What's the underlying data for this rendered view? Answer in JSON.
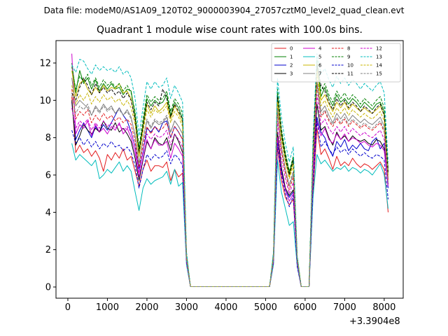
{
  "figure": {
    "suptitle": "Data file: modeM0/AS1A09_120T02_9000003904_27057cztM0_level2_quad_clean.evt",
    "x_offset_label": "+3.3904e8"
  },
  "chart_data": {
    "type": "line",
    "title": "Quadrant 1 module wise count rates with 100.0s bins.",
    "xlabel": "",
    "ylabel": "",
    "xlim": [
      -300,
      8480
    ],
    "ylim": [
      -0.6,
      13.2
    ],
    "xticks": [
      0,
      1000,
      2000,
      3000,
      4000,
      5000,
      6000,
      7000,
      8000
    ],
    "yticks": [
      0,
      2,
      4,
      6,
      8,
      10,
      12
    ],
    "legend_position": "top-right",
    "x": [
      100,
      200,
      300,
      400,
      500,
      600,
      700,
      800,
      900,
      1000,
      1100,
      1200,
      1300,
      1400,
      1500,
      1600,
      1700,
      1800,
      1900,
      2000,
      2100,
      2200,
      2300,
      2400,
      2500,
      2600,
      2700,
      2800,
      2900,
      3000,
      3100,
      5100,
      5200,
      5300,
      5400,
      5500,
      5600,
      5700,
      5800,
      5900,
      6000,
      6100,
      6200,
      6300,
      6400,
      6500,
      6600,
      6700,
      6800,
      6900,
      7000,
      7100,
      7200,
      7300,
      7400,
      7500,
      7600,
      7700,
      7800,
      7900,
      8000,
      8100
    ],
    "series": [
      {
        "name": "0",
        "color": "#e31a1c",
        "dash": "solid",
        "values": [
          10.2,
          7.2,
          7.6,
          7.2,
          7.4,
          7.0,
          7.3,
          6.9,
          6.2,
          7.1,
          6.8,
          7.2,
          6.9,
          7.4,
          6.8,
          7.0,
          6.2,
          5.4,
          6.3,
          6.8,
          6.2,
          6.5,
          6.5,
          6.4,
          6.7,
          5.7,
          6.3,
          5.9,
          6.1,
          1.5,
          0.02,
          0.02,
          1.3,
          7.5,
          5.7,
          4.8,
          4.4,
          4.7,
          1.2,
          0.02,
          0.02,
          0.02,
          5.0,
          8.5,
          7.1,
          7.4,
          6.9,
          6.3,
          7.0,
          6.5,
          6.7,
          6.5,
          6.9,
          6.6,
          6.4,
          6.6,
          6.5,
          6.3,
          6.5,
          6.7,
          6.3,
          4.0
        ]
      },
      {
        "name": "1",
        "color": "#008000",
        "dash": "solid",
        "values": [
          12.0,
          10.4,
          11.6,
          10.9,
          11.2,
          10.6,
          11.1,
          10.5,
          10.9,
          10.6,
          10.9,
          10.6,
          10.7,
          10.3,
          10.6,
          10.5,
          9.2,
          7.3,
          8.7,
          10.1,
          9.7,
          10.0,
          9.8,
          9.9,
          10.3,
          9.2,
          9.9,
          9.6,
          9.0,
          1.7,
          0.02,
          0.02,
          1.7,
          10.4,
          8.3,
          7.1,
          6.1,
          6.9,
          1.6,
          0.02,
          0.02,
          0.02,
          7.4,
          12.0,
          10.2,
          10.7,
          10.1,
          9.7,
          10.3,
          9.9,
          10.1,
          9.8,
          10.1,
          9.9,
          9.6,
          9.9,
          9.7,
          9.5,
          9.8,
          9.9,
          9.4,
          6.2
        ]
      },
      {
        "name": "2",
        "color": "#0000cd",
        "dash": "solid",
        "values": [
          9.9,
          7.9,
          8.4,
          8.8,
          8.4,
          8.0,
          8.6,
          8.3,
          8.7,
          8.4,
          8.8,
          9.2,
          9.6,
          9.2,
          8.9,
          8.3,
          7.5,
          6.3,
          7.2,
          8.5,
          8.3,
          8.6,
          8.3,
          8.8,
          8.9,
          8.0,
          8.6,
          8.3,
          7.9,
          1.6,
          0.02,
          0.02,
          1.5,
          8.1,
          6.3,
          5.2,
          4.8,
          5.1,
          1.3,
          0.02,
          0.02,
          0.02,
          5.9,
          9.1,
          8.3,
          8.0,
          7.4,
          7.0,
          7.8,
          7.5,
          7.9,
          7.3,
          7.6,
          7.4,
          7.7,
          7.4,
          7.3,
          7.8,
          8.0,
          7.4,
          7.7,
          5.3
        ]
      },
      {
        "name": "3",
        "color": "#000000",
        "dash": "solid",
        "values": [
          10.0,
          7.6,
          8.1,
          8.7,
          8.4,
          8.2,
          8.5,
          8.3,
          8.9,
          8.5,
          8.4,
          8.8,
          8.3,
          8.5,
          8.2,
          7.8,
          6.9,
          5.7,
          6.8,
          7.8,
          7.4,
          8.0,
          7.7,
          7.6,
          8.0,
          7.3,
          8.2,
          7.8,
          7.2,
          1.4,
          0.02,
          0.02,
          1.4,
          8.3,
          6.4,
          5.3,
          4.9,
          5.2,
          1.3,
          0.02,
          0.02,
          0.02,
          6.1,
          9.8,
          8.4,
          8.6,
          8.0,
          7.6,
          8.3,
          7.9,
          8.1,
          7.8,
          8.1,
          7.9,
          7.8,
          7.9,
          7.7,
          7.6,
          7.9,
          7.8,
          7.4,
          5.5
        ]
      },
      {
        "name": "4",
        "color": "#cc00cc",
        "dash": "solid",
        "values": [
          12.5,
          8.2,
          8.7,
          8.5,
          8.9,
          8.1,
          8.7,
          8.3,
          8.5,
          8.2,
          8.6,
          8.4,
          8.8,
          8.2,
          8.5,
          8.0,
          7.2,
          5.9,
          6.9,
          7.9,
          7.4,
          7.9,
          7.6,
          7.6,
          7.8,
          6.9,
          7.7,
          7.4,
          7.0,
          1.4,
          0.02,
          0.02,
          1.4,
          8.0,
          6.1,
          5.2,
          4.6,
          5.0,
          1.2,
          0.02,
          0.02,
          0.02,
          5.9,
          8.9,
          8.1,
          8.5,
          7.9,
          7.7,
          8.2,
          7.9,
          8.2,
          7.8,
          8.0,
          7.9,
          7.7,
          7.8,
          7.6,
          7.5,
          7.7,
          7.6,
          7.3,
          5.4
        ]
      },
      {
        "name": "5",
        "color": "#00bcbc",
        "dash": "solid",
        "values": [
          7.7,
          6.8,
          7.1,
          6.9,
          6.7,
          6.5,
          6.8,
          5.8,
          6.0,
          6.3,
          6.1,
          6.4,
          6.7,
          6.2,
          6.5,
          6.2,
          5.1,
          4.1,
          5.3,
          5.8,
          5.5,
          5.7,
          5.8,
          5.9,
          6.2,
          5.5,
          6.3,
          5.4,
          5.6,
          1.2,
          0.02,
          0.02,
          1.2,
          6.8,
          5.1,
          4.2,
          3.3,
          3.5,
          1.1,
          0.02,
          0.02,
          0.02,
          4.8,
          7.1,
          6.6,
          6.8,
          6.5,
          6.2,
          6.4,
          6.3,
          6.5,
          6.2,
          6.4,
          6.3,
          6.1,
          6.3,
          6.2,
          6.0,
          6.3,
          6.6,
          6.0,
          4.2
        ]
      },
      {
        "name": "6",
        "color": "#c8b400",
        "dash": "solid",
        "values": [
          11.6,
          10.2,
          10.9,
          11.1,
          10.6,
          10.3,
          10.7,
          10.4,
          10.8,
          10.5,
          10.7,
          10.6,
          10.9,
          10.4,
          10.5,
          10.1,
          8.9,
          7.0,
          8.5,
          9.8,
          9.3,
          9.7,
          9.4,
          9.6,
          9.9,
          9.0,
          9.7,
          9.3,
          8.8,
          1.7,
          0.02,
          0.02,
          1.7,
          10.2,
          8.1,
          6.8,
          5.9,
          6.7,
          1.5,
          0.02,
          0.02,
          0.02,
          7.1,
          11.7,
          10.0,
          10.3,
          9.8,
          9.4,
          9.9,
          9.6,
          9.9,
          9.5,
          9.8,
          9.6,
          9.4,
          9.6,
          9.4,
          9.3,
          9.5,
          9.7,
          9.2,
          6.0
        ]
      },
      {
        "name": "7",
        "color": "#808080",
        "dash": "solid",
        "values": [
          11.2,
          9.7,
          10.0,
          9.8,
          9.6,
          9.2,
          9.7,
          9.4,
          9.8,
          9.5,
          9.7,
          9.3,
          9.6,
          9.2,
          9.5,
          9.1,
          8.1,
          6.6,
          7.9,
          8.9,
          8.5,
          8.9,
          8.7,
          8.8,
          9.1,
          8.3,
          8.9,
          8.6,
          8.2,
          1.6,
          0.02,
          0.02,
          1.6,
          9.6,
          7.5,
          6.3,
          5.4,
          6.1,
          1.4,
          0.02,
          0.02,
          0.02,
          6.7,
          11.1,
          9.4,
          9.7,
          9.2,
          8.8,
          9.3,
          9.0,
          9.3,
          8.9,
          9.2,
          9.0,
          8.8,
          9.0,
          8.8,
          8.7,
          8.9,
          9.1,
          8.6,
          5.8
        ]
      },
      {
        "name": "8",
        "color": "#e31a1c",
        "dash": "dashed",
        "values": [
          10.6,
          9.0,
          9.4,
          9.2,
          9.5,
          8.8,
          9.2,
          8.9,
          9.3,
          9.0,
          9.2,
          8.9,
          9.1,
          8.8,
          9.0,
          8.7,
          7.8,
          6.4,
          7.6,
          8.6,
          8.2,
          8.6,
          8.4,
          8.5,
          8.8,
          8.0,
          8.6,
          8.3,
          7.9,
          1.5,
          0.02,
          0.02,
          1.5,
          9.4,
          7.3,
          6.1,
          5.2,
          5.9,
          1.3,
          0.02,
          0.02,
          0.02,
          6.5,
          10.8,
          9.1,
          9.4,
          8.9,
          8.6,
          9.0,
          8.7,
          9.0,
          8.6,
          8.9,
          8.7,
          8.5,
          8.7,
          8.5,
          8.4,
          8.6,
          8.8,
          8.3,
          5.7
        ]
      },
      {
        "name": "9",
        "color": "#008000",
        "dash": "dashed",
        "values": [
          11.8,
          10.6,
          11.3,
          11.0,
          11.4,
          10.8,
          11.2,
          10.7,
          11.1,
          10.8,
          11.0,
          10.7,
          10.9,
          10.5,
          10.8,
          10.4,
          9.4,
          7.5,
          9.0,
          10.3,
          9.9,
          10.2,
          10.0,
          10.1,
          10.5,
          9.4,
          10.1,
          9.8,
          9.3,
          1.8,
          0.02,
          0.02,
          1.8,
          10.6,
          8.5,
          7.2,
          6.2,
          7.0,
          1.6,
          0.02,
          0.02,
          0.02,
          7.6,
          12.2,
          10.5,
          10.9,
          10.3,
          9.9,
          10.5,
          10.1,
          10.4,
          10.0,
          10.3,
          10.1,
          9.8,
          10.1,
          9.9,
          9.7,
          10.0,
          10.2,
          9.6,
          6.3
        ]
      },
      {
        "name": "10",
        "color": "#0000cd",
        "dash": "dashed",
        "values": [
          8.4,
          7.7,
          8.0,
          7.6,
          7.9,
          7.5,
          7.8,
          7.4,
          7.7,
          7.5,
          7.8,
          7.5,
          7.6,
          7.3,
          7.5,
          7.2,
          6.5,
          5.3,
          6.3,
          7.1,
          6.8,
          7.1,
          6.9,
          7.0,
          7.3,
          6.6,
          7.1,
          6.9,
          6.5,
          1.3,
          0.02,
          0.02,
          1.3,
          7.7,
          6.0,
          5.0,
          4.3,
          4.9,
          1.1,
          0.02,
          0.02,
          0.02,
          5.4,
          8.9,
          7.5,
          7.8,
          7.4,
          7.1,
          7.5,
          7.2,
          7.4,
          7.1,
          7.4,
          7.2,
          7.0,
          7.2,
          7.0,
          6.9,
          7.1,
          7.0,
          6.8,
          4.7
        ]
      },
      {
        "name": "11",
        "color": "#000000",
        "dash": "dashed",
        "values": [
          10.4,
          10.0,
          10.7,
          11.2,
          10.8,
          10.3,
          10.9,
          10.4,
          10.7,
          10.4,
          10.6,
          10.3,
          10.5,
          10.1,
          10.4,
          10.0,
          9.0,
          7.2,
          8.6,
          9.9,
          9.5,
          9.9,
          9.7,
          10.6,
          10.1,
          9.1,
          9.8,
          9.4,
          9.0,
          1.7,
          0.02,
          0.02,
          1.7,
          10.2,
          8.2,
          6.9,
          6.0,
          6.8,
          1.5,
          0.02,
          0.02,
          0.02,
          7.3,
          11.9,
          10.8,
          10.5,
          9.9,
          9.5,
          10.1,
          9.7,
          10.0,
          9.6,
          9.9,
          9.7,
          9.4,
          9.7,
          9.5,
          9.3,
          9.6,
          9.8,
          9.2,
          6.1
        ]
      },
      {
        "name": "12",
        "color": "#cc00cc",
        "dash": "dashed",
        "values": [
          9.6,
          8.5,
          8.9,
          8.7,
          9.0,
          8.4,
          8.8,
          8.5,
          8.9,
          8.6,
          8.8,
          8.5,
          8.7,
          8.4,
          8.6,
          8.3,
          7.5,
          6.1,
          7.3,
          8.2,
          7.9,
          8.2,
          8.0,
          8.1,
          8.4,
          7.6,
          8.2,
          7.9,
          7.5,
          1.4,
          0.02,
          0.02,
          1.4,
          8.9,
          6.9,
          5.8,
          5.0,
          5.6,
          1.3,
          0.02,
          0.02,
          0.02,
          6.2,
          10.3,
          8.7,
          9.0,
          8.5,
          8.2,
          8.6,
          8.3,
          8.6,
          8.2,
          8.5,
          8.3,
          8.1,
          8.3,
          8.1,
          8.0,
          8.2,
          8.4,
          7.9,
          5.5
        ]
      },
      {
        "name": "13",
        "color": "#00bcbc",
        "dash": "dashed",
        "values": [
          11.9,
          11.5,
          12.2,
          12.1,
          11.7,
          11.4,
          11.9,
          11.6,
          11.8,
          11.6,
          11.7,
          11.5,
          11.8,
          11.4,
          11.6,
          11.2,
          10.1,
          8.1,
          9.6,
          11.0,
          10.6,
          11.0,
          10.7,
          10.8,
          11.2,
          10.1,
          10.8,
          10.4,
          9.9,
          1.9,
          0.02,
          0.02,
          1.9,
          11.2,
          9.1,
          7.7,
          6.7,
          7.5,
          1.7,
          0.02,
          0.02,
          0.02,
          8.0,
          12.5,
          11.4,
          11.7,
          11.1,
          10.7,
          11.3,
          10.9,
          11.2,
          10.8,
          11.1,
          10.9,
          10.6,
          10.9,
          10.7,
          10.5,
          10.8,
          11.0,
          10.4,
          6.7
        ]
      },
      {
        "name": "14",
        "color": "#c8b400",
        "dash": "dashed",
        "values": [
          10.8,
          9.8,
          10.3,
          10.0,
          10.4,
          9.8,
          10.2,
          9.9,
          10.3,
          10.0,
          10.2,
          9.9,
          10.1,
          9.7,
          10.0,
          9.6,
          8.7,
          7.0,
          8.3,
          9.5,
          9.1,
          9.5,
          9.3,
          9.4,
          9.7,
          8.8,
          9.4,
          9.1,
          8.6,
          1.6,
          0.02,
          0.02,
          1.6,
          9.9,
          7.9,
          6.7,
          5.8,
          6.5,
          1.5,
          0.02,
          0.02,
          0.02,
          7.0,
          11.4,
          9.7,
          10.0,
          9.5,
          9.1,
          9.6,
          9.3,
          9.6,
          9.2,
          9.5,
          9.3,
          9.1,
          9.3,
          9.1,
          9.0,
          9.2,
          9.4,
          8.9,
          5.9
        ]
      },
      {
        "name": "15",
        "color": "#808080",
        "dash": "dashed",
        "values": [
          10.3,
          9.3,
          9.7,
          9.5,
          9.8,
          9.2,
          9.6,
          9.3,
          9.7,
          9.4,
          9.6,
          9.3,
          9.5,
          9.2,
          9.4,
          9.0,
          8.2,
          6.6,
          7.9,
          9.0,
          8.6,
          9.0,
          8.8,
          8.9,
          9.2,
          8.3,
          8.9,
          8.6,
          8.2,
          1.5,
          0.02,
          0.02,
          1.5,
          9.5,
          7.5,
          6.3,
          5.5,
          6.2,
          1.4,
          0.02,
          0.02,
          0.02,
          6.6,
          10.9,
          9.2,
          9.5,
          9.0,
          8.7,
          9.1,
          8.8,
          9.1,
          8.7,
          9.0,
          8.8,
          8.6,
          8.8,
          8.6,
          8.5,
          8.7,
          8.9,
          8.4,
          5.6
        ]
      }
    ]
  }
}
